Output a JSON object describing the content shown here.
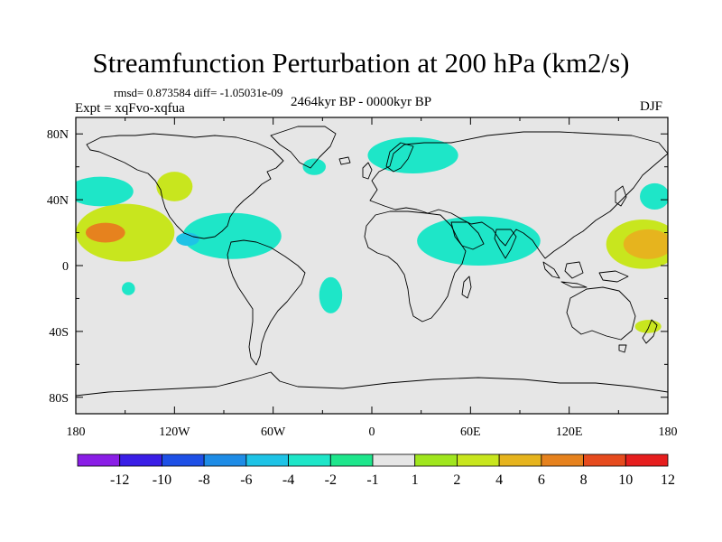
{
  "chart_data": {
    "type": "heatmap",
    "title": "Streamfunction Perturbation at 200 hPa (km2/s)",
    "stats_label": "rmsd= 0.873584 diff= -1.05031e-09",
    "experiment_label": "Expt = xqFvo-xqfua",
    "period_label": "2464kyr BP - 0000kyr BP",
    "season_label": "DJF",
    "x_ticks": [
      "180",
      "120W",
      "60W",
      "0",
      "60E",
      "120E",
      "180"
    ],
    "x_tick_values": [
      -180,
      -120,
      -60,
      0,
      60,
      120,
      180
    ],
    "y_ticks": [
      "80N",
      "40N",
      "0",
      "40S",
      "80S"
    ],
    "y_tick_values": [
      80,
      40,
      0,
      -40,
      -80
    ],
    "xlim": [
      -180,
      180
    ],
    "ylim": [
      -90,
      90
    ],
    "colorbar_labels": [
      "-12",
      "-10",
      "-8",
      "-6",
      "-4",
      "-2",
      "-1",
      "1",
      "2",
      "4",
      "6",
      "8",
      "10",
      "12"
    ],
    "colorbar_colors": [
      "#8a1ee6",
      "#3a1ee6",
      "#1e50e6",
      "#1e8ce6",
      "#1ec3e6",
      "#1ee6c8",
      "#1ee68c",
      "#e6e6e6",
      "#a0e61e",
      "#c8e61e",
      "#e6b41e",
      "#e6821e",
      "#e64b1e",
      "#e61e1e"
    ],
    "features": [
      {
        "name": "Pacific NE anomaly",
        "type": "positive",
        "level": "2",
        "lon": -150,
        "lat": 20,
        "lon_span": 60,
        "lat_span": 35
      },
      {
        "name": "Pacific NE core",
        "type": "positive",
        "level": "6",
        "lon": -162,
        "lat": 20,
        "lon_span": 24,
        "lat_span": 12
      },
      {
        "name": "Mexico/Caribbean anomaly",
        "type": "negative",
        "level": "-2",
        "lon": -85,
        "lat": 18,
        "lon_span": 60,
        "lat_span": 28
      },
      {
        "name": "Mexico core",
        "type": "negative",
        "level": "-4",
        "lon": -112,
        "lat": 16,
        "lon_span": 14,
        "lat_span": 8
      },
      {
        "name": "Western North America",
        "type": "positive",
        "level": "2",
        "lon": -120,
        "lat": 48,
        "lon_span": 22,
        "lat_span": 18
      },
      {
        "name": "North Pacific",
        "type": "negative",
        "level": "-2",
        "lon": -165,
        "lat": 45,
        "lon_span": 40,
        "lat_span": 18
      },
      {
        "name": "Europe",
        "type": "negative",
        "level": "-2",
        "lon": 25,
        "lat": 67,
        "lon_span": 55,
        "lat_span": 22
      },
      {
        "name": "Atlantic",
        "type": "negative",
        "level": "-2",
        "lon": -35,
        "lat": 60,
        "lon_span": 14,
        "lat_span": 10
      },
      {
        "name": "North Africa / Middle East",
        "type": "negative",
        "level": "-2",
        "lon": 65,
        "lat": 15,
        "lon_span": 75,
        "lat_span": 30
      },
      {
        "name": "Western Pacific",
        "type": "positive",
        "level": "2",
        "lon": 165,
        "lat": 13,
        "lon_span": 45,
        "lat_span": 30
      },
      {
        "name": "Western Pacific core",
        "type": "positive",
        "level": "4",
        "lon": 168,
        "lat": 13,
        "lon_span": 30,
        "lat_span": 18
      },
      {
        "name": "NW Pacific",
        "type": "negative",
        "level": "-2",
        "lon": 172,
        "lat": 42,
        "lon_span": 18,
        "lat_span": 16
      },
      {
        "name": "South Atlantic",
        "type": "negative",
        "level": "-2",
        "lon": -25,
        "lat": -18,
        "lon_span": 14,
        "lat_span": 22
      },
      {
        "name": "South Pacific",
        "type": "negative",
        "level": "-2",
        "lon": -148,
        "lat": -14,
        "lon_span": 8,
        "lat_span": 8
      },
      {
        "name": "New Zealand",
        "type": "positive",
        "level": "2",
        "lon": 168,
        "lat": -37,
        "lon_span": 16,
        "lat_span": 8
      }
    ]
  }
}
